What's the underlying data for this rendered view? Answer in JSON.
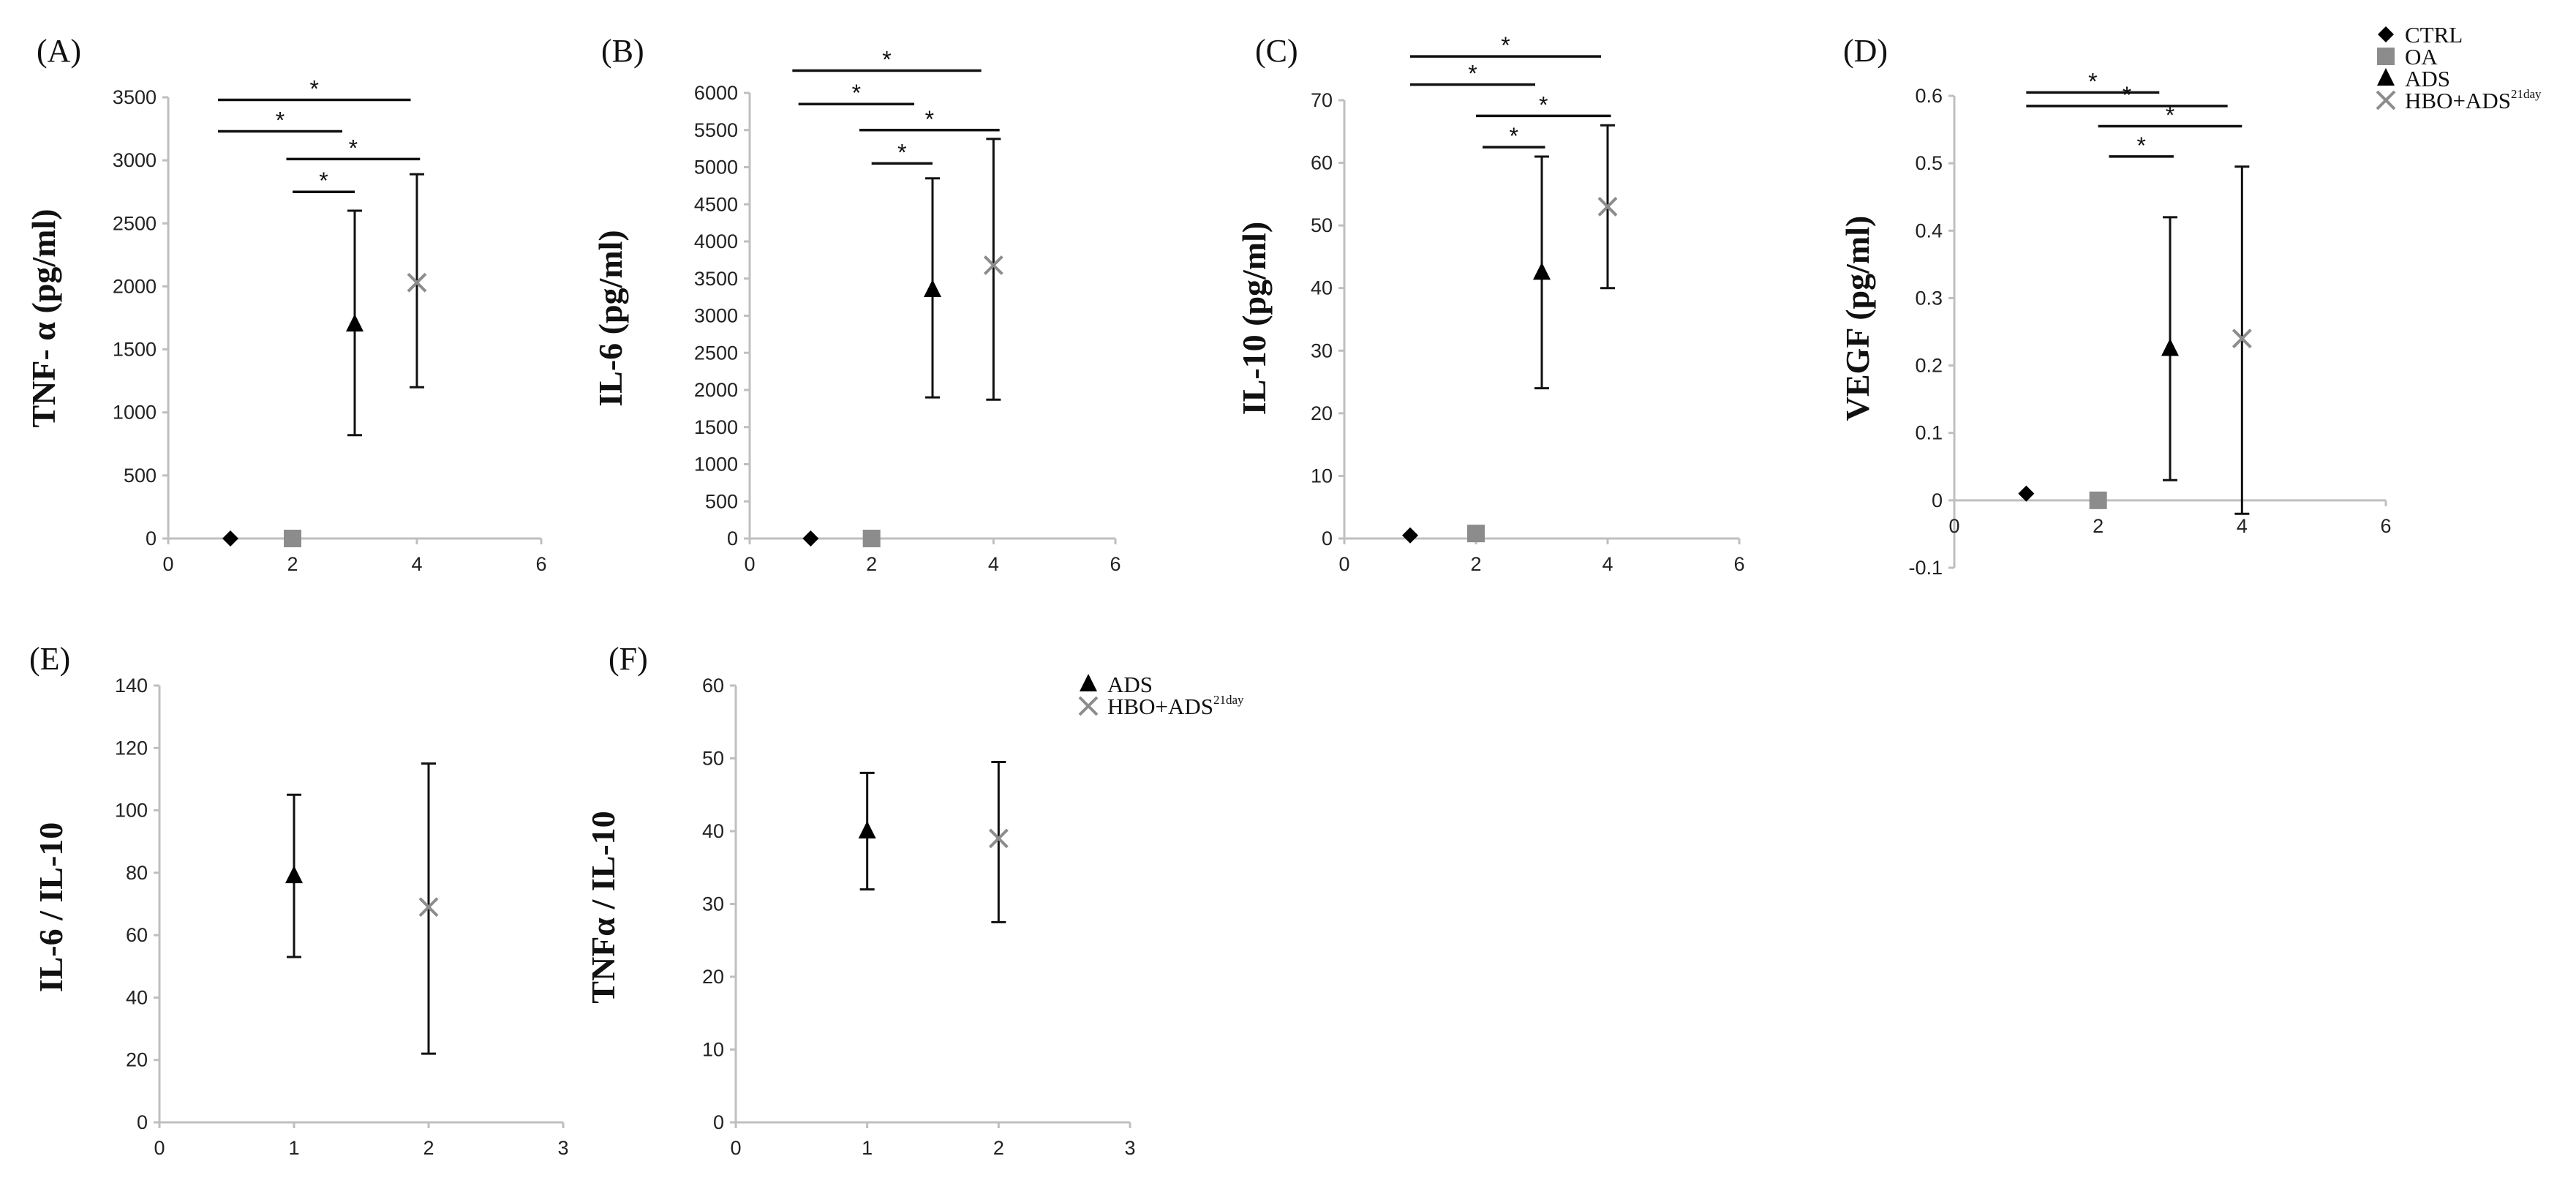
{
  "colors": {
    "ctrl": "#000000",
    "oa": "#8c8c8c",
    "ads": "#000000",
    "hbo": "#8c8c8c",
    "axis": "#bfbfbf"
  },
  "legend_top": {
    "items": [
      {
        "label": "CTRL",
        "marker": "diamond",
        "color": "#000000"
      },
      {
        "label": "OA",
        "marker": "square",
        "color": "#8c8c8c"
      },
      {
        "label": "ADS",
        "marker": "triangle",
        "color": "#000000"
      },
      {
        "label": "HBO+ADS",
        "sup": "21day",
        "marker": "cross",
        "color": "#8c8c8c"
      }
    ]
  },
  "legend_bottom": {
    "items": [
      {
        "label": "ADS",
        "marker": "triangle",
        "color": "#000000"
      },
      {
        "label": "HBO+ADS",
        "sup": "21day",
        "marker": "cross",
        "color": "#8c8c8c"
      }
    ]
  },
  "chart_data": [
    {
      "id": "A",
      "panel": "(A)",
      "type": "scatter",
      "ylabel": "TNF- α (pg/ml)",
      "xlim": [
        0,
        6
      ],
      "ylim": [
        0,
        3500
      ],
      "xticks": [
        0,
        2,
        4,
        6
      ],
      "yticks": [
        0,
        500,
        1000,
        1500,
        2000,
        2500,
        3000,
        3500
      ],
      "points": [
        {
          "x": 1,
          "y": 0,
          "marker": "diamond",
          "color": "#000000"
        },
        {
          "x": 2,
          "y": 0,
          "marker": "square",
          "color": "#8c8c8c"
        },
        {
          "x": 3,
          "y": 1700,
          "err_low": 820,
          "err_high": 2600,
          "marker": "triangle",
          "color": "#000000"
        },
        {
          "x": 4,
          "y": 2030,
          "err_low": 1200,
          "err_high": 2890,
          "marker": "cross",
          "color": "#8c8c8c"
        }
      ],
      "significance": [
        {
          "x1": 0.8,
          "x2": 3.9,
          "y": 3480,
          "label": "*"
        },
        {
          "x1": 0.8,
          "x2": 2.8,
          "y": 3230,
          "label": "*"
        },
        {
          "x1": 1.9,
          "x2": 4.05,
          "y": 3010,
          "label": "*"
        },
        {
          "x1": 2.0,
          "x2": 3.0,
          "y": 2750,
          "label": "*"
        }
      ]
    },
    {
      "id": "B",
      "panel": "(B)",
      "type": "scatter",
      "ylabel": "IL-6 (pg/ml)",
      "xlim": [
        0,
        6
      ],
      "ylim": [
        0,
        6000
      ],
      "xticks": [
        0,
        2,
        4,
        6
      ],
      "yticks": [
        0,
        500,
        1000,
        1500,
        2000,
        2500,
        3000,
        3500,
        4000,
        4500,
        5000,
        5500,
        6000
      ],
      "points": [
        {
          "x": 1,
          "y": 0,
          "marker": "diamond",
          "color": "#000000"
        },
        {
          "x": 2,
          "y": 0,
          "marker": "square",
          "color": "#8c8c8c"
        },
        {
          "x": 3,
          "y": 3350,
          "err_low": 1900,
          "err_high": 4850,
          "marker": "triangle",
          "color": "#000000"
        },
        {
          "x": 4,
          "y": 3680,
          "err_low": 1870,
          "err_high": 5380,
          "marker": "cross",
          "color": "#8c8c8c"
        }
      ],
      "significance": [
        {
          "x1": 0.7,
          "x2": 3.8,
          "y": 6300,
          "label": "*"
        },
        {
          "x1": 0.8,
          "x2": 2.7,
          "y": 5850,
          "label": "*"
        },
        {
          "x1": 1.8,
          "x2": 4.1,
          "y": 5500,
          "label": "*"
        },
        {
          "x1": 2.0,
          "x2": 3.0,
          "y": 5050,
          "label": "*"
        }
      ]
    },
    {
      "id": "C",
      "panel": "(C)",
      "type": "scatter",
      "ylabel": "IL-10 (pg/ml)",
      "xlim": [
        0,
        6
      ],
      "ylim": [
        0,
        70
      ],
      "xticks": [
        0,
        2,
        4,
        6
      ],
      "yticks": [
        0,
        10,
        20,
        30,
        40,
        50,
        60,
        70
      ],
      "points": [
        {
          "x": 1,
          "y": 0.5,
          "marker": "diamond",
          "color": "#000000"
        },
        {
          "x": 2,
          "y": 0.8,
          "marker": "square",
          "color": "#8c8c8c"
        },
        {
          "x": 3,
          "y": 42.5,
          "err_low": 24,
          "err_high": 61,
          "marker": "triangle",
          "color": "#000000"
        },
        {
          "x": 4,
          "y": 53,
          "err_low": 40,
          "err_high": 66,
          "marker": "cross",
          "color": "#8c8c8c"
        }
      ],
      "significance": [
        {
          "x1": 1.0,
          "x2": 3.9,
          "y": 77,
          "label": "*"
        },
        {
          "x1": 1.0,
          "x2": 2.9,
          "y": 72.5,
          "label": "*"
        },
        {
          "x1": 2.0,
          "x2": 4.05,
          "y": 67.5,
          "label": "*"
        },
        {
          "x1": 2.1,
          "x2": 3.05,
          "y": 62.5,
          "label": "*"
        }
      ]
    },
    {
      "id": "D",
      "panel": "(D)",
      "type": "scatter",
      "ylabel": "VEGF (pg/ml)",
      "xlim": [
        0,
        6
      ],
      "ylim": [
        -0.1,
        0.6
      ],
      "xticks": [
        0,
        2,
        4,
        6
      ],
      "yticks": [
        -0.1,
        0,
        0.1,
        0.2,
        0.3,
        0.4,
        0.5,
        0.6
      ],
      "points": [
        {
          "x": 1,
          "y": 0.01,
          "marker": "diamond",
          "color": "#000000"
        },
        {
          "x": 2,
          "y": 0.0,
          "marker": "square",
          "color": "#8c8c8c"
        },
        {
          "x": 3,
          "y": 0.225,
          "err_low": 0.03,
          "err_high": 0.42,
          "marker": "triangle",
          "color": "#000000"
        },
        {
          "x": 4,
          "y": 0.24,
          "err_low": -0.02,
          "err_high": 0.495,
          "marker": "cross",
          "color": "#8c8c8c"
        }
      ],
      "significance": [
        {
          "x1": 1.0,
          "x2": 3.8,
          "y": 0.585,
          "label": "*"
        },
        {
          "x1": 1.0,
          "x2": 2.85,
          "y": 0.605,
          "label": "*"
        },
        {
          "x1": 2.0,
          "x2": 4.0,
          "y": 0.555,
          "label": "*"
        },
        {
          "x1": 2.15,
          "x2": 3.05,
          "y": 0.51,
          "label": "*"
        }
      ]
    },
    {
      "id": "E",
      "panel": "(E)",
      "type": "scatter",
      "ylabel": "IL-6 / IL-10",
      "xlim": [
        0,
        3
      ],
      "ylim": [
        0,
        140
      ],
      "xticks": [
        0,
        1,
        2,
        3
      ],
      "yticks": [
        0,
        20,
        40,
        60,
        80,
        100,
        120,
        140
      ],
      "points": [
        {
          "x": 1,
          "y": 79,
          "err_low": 53,
          "err_high": 105,
          "marker": "triangle",
          "color": "#000000"
        },
        {
          "x": 2,
          "y": 69,
          "err_low": 22,
          "err_high": 115,
          "marker": "cross",
          "color": "#8c8c8c"
        }
      ],
      "significance": []
    },
    {
      "id": "F",
      "panel": "(F)",
      "type": "scatter",
      "ylabel": "TNFα / IL-10",
      "xlim": [
        0,
        3
      ],
      "ylim": [
        0,
        60
      ],
      "xticks": [
        0,
        1,
        2,
        3
      ],
      "yticks": [
        0,
        10,
        20,
        30,
        40,
        50,
        60
      ],
      "points": [
        {
          "x": 1,
          "y": 40,
          "err_low": 32,
          "err_high": 48,
          "marker": "triangle",
          "color": "#000000"
        },
        {
          "x": 2,
          "y": 39,
          "err_low": 27.5,
          "err_high": 49.5,
          "marker": "cross",
          "color": "#8c8c8c"
        }
      ],
      "significance": []
    }
  ]
}
